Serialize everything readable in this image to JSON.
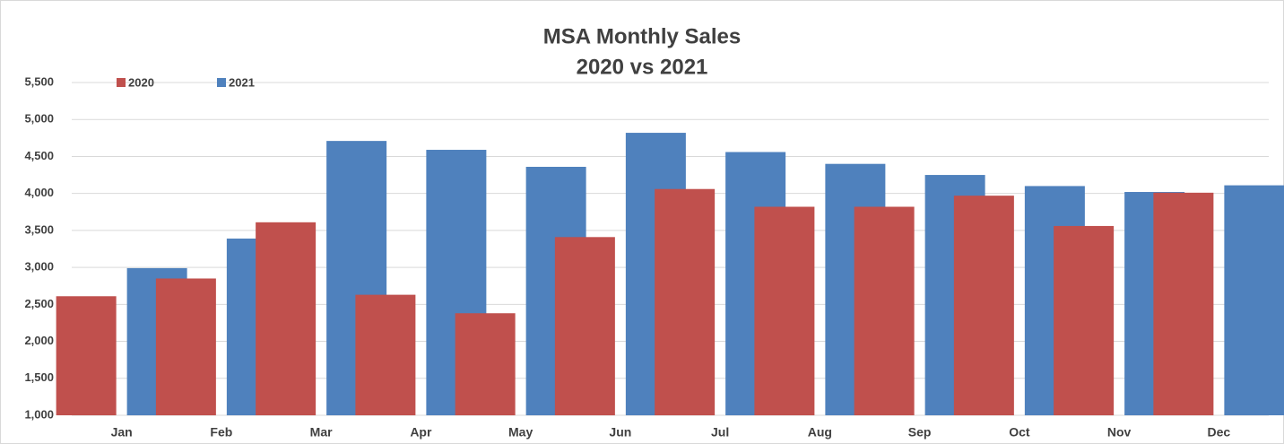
{
  "chart_data": {
    "type": "bar",
    "title": "MSA Monthly Sales",
    "subtitle": "2020 vs 2021",
    "categories": [
      "Jan",
      "Feb",
      "Mar",
      "Apr",
      "May",
      "Jun",
      "Jul",
      "Aug",
      "Sep",
      "Oct",
      "Nov",
      "Dec"
    ],
    "series": [
      {
        "name": "2020",
        "color": "#c0504d",
        "values": [
          2610,
          2850,
          3610,
          2630,
          2380,
          3410,
          4060,
          3820,
          3820,
          3970,
          3560,
          4010
        ]
      },
      {
        "name": "2021",
        "color": "#4f81bd",
        "values": [
          2990,
          3390,
          4710,
          4590,
          4360,
          4820,
          4560,
          4400,
          4250,
          4100,
          4020,
          4110
        ]
      }
    ],
    "ylim": [
      1000,
      5500
    ],
    "yticks": [
      {
        "value": 1000,
        "label": "1,000"
      },
      {
        "value": 1500,
        "label": "1,500"
      },
      {
        "value": 2000,
        "label": "2,000"
      },
      {
        "value": 2500,
        "label": "2,500"
      },
      {
        "value": 3000,
        "label": "3,000"
      },
      {
        "value": 3500,
        "label": "3,500"
      },
      {
        "value": 4000,
        "label": "4,000"
      },
      {
        "value": 4500,
        "label": "4,500"
      },
      {
        "value": 5000,
        "label": "5,000"
      },
      {
        "value": 5500,
        "label": "5,500"
      }
    ],
    "grid": true,
    "legend": "top-left"
  }
}
